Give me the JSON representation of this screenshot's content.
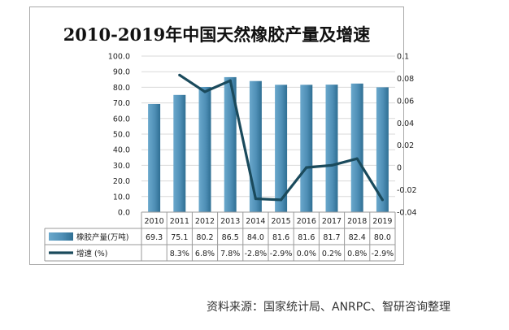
{
  "chart_data": {
    "type": "bar+line",
    "title": "2010-2019年中国天然橡胶产量及增速",
    "categories": [
      "2010",
      "2011",
      "2012",
      "2013",
      "2014",
      "2015",
      "2016",
      "2017",
      "2018",
      "2019"
    ],
    "series": [
      {
        "name": "橡胶产量(万吨)",
        "type": "bar",
        "axis": "left",
        "values": [
          69.3,
          75.1,
          80.2,
          86.5,
          84.0,
          81.6,
          81.6,
          81.7,
          82.4,
          80.0
        ],
        "labels": [
          "69.3",
          "75.1",
          "80.2",
          "86.5",
          "84.0",
          "81.6",
          "81.6",
          "81.7",
          "82.4",
          "80.0"
        ],
        "color": "#4f8fb6"
      },
      {
        "name": "增速 (%)",
        "type": "line",
        "axis": "right",
        "values": [
          null,
          0.083,
          0.068,
          0.078,
          -0.028,
          -0.029,
          0.0,
          0.002,
          0.008,
          -0.029
        ],
        "labels": [
          "",
          "8.3%",
          "6.8%",
          "7.8%",
          "-2.8%",
          "-2.9%",
          "0.0%",
          "0.2%",
          "0.8%",
          "-2.9%"
        ],
        "color": "#1a4a5c"
      }
    ],
    "y_left": {
      "min": 0,
      "max": 100,
      "ticks": [
        "0.0",
        "10.0",
        "20.0",
        "30.0",
        "40.0",
        "50.0",
        "60.0",
        "70.0",
        "80.0",
        "90.0",
        "100.0"
      ]
    },
    "y_right": {
      "min": -0.04,
      "max": 0.1,
      "ticks": [
        "-0.04",
        "-0.02",
        "0",
        "0.02",
        "0.04",
        "0.06",
        "0.08",
        "0.1"
      ]
    },
    "data_table": true,
    "grid": true
  },
  "source_note": "资料来源：国家统计局、ANRPC、智研咨询整理"
}
